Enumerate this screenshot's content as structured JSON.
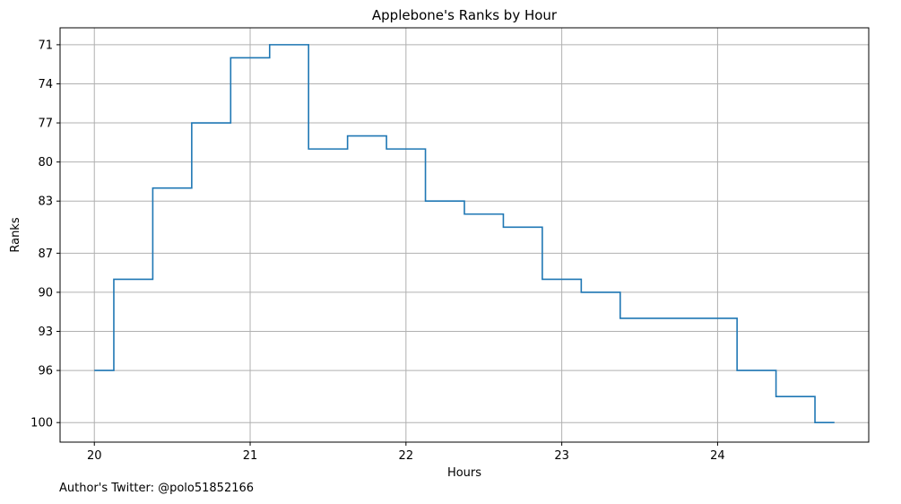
{
  "chart_data": {
    "type": "line",
    "step": "post",
    "title": "Applebone's Ranks by Hour",
    "xlabel": "Hours",
    "ylabel": "Ranks",
    "xlim": [
      19.78,
      24.97
    ],
    "ylim": [
      101.5,
      69.7
    ],
    "y_inverted": true,
    "grid": true,
    "line_color": "#1f77b4",
    "x_ticks": [
      20,
      21,
      22,
      23,
      24
    ],
    "y_ticks": [
      71,
      74,
      77,
      80,
      83,
      87,
      90,
      93,
      96,
      100
    ],
    "series": [
      {
        "x": [
          20.0,
          20.125,
          20.375,
          20.625,
          20.875,
          21.125,
          21.375,
          21.625,
          21.875,
          22.125,
          22.375,
          22.625,
          22.875,
          23.125,
          23.375,
          24.125,
          24.375,
          24.625,
          24.75
        ],
        "values": [
          96,
          89,
          82,
          77,
          72,
          71,
          79,
          78,
          79,
          83,
          84,
          85,
          89,
          90,
          92,
          96,
          98,
          100,
          100
        ]
      }
    ]
  },
  "footer": {
    "note": "Author's Twitter: @polo51852166"
  }
}
